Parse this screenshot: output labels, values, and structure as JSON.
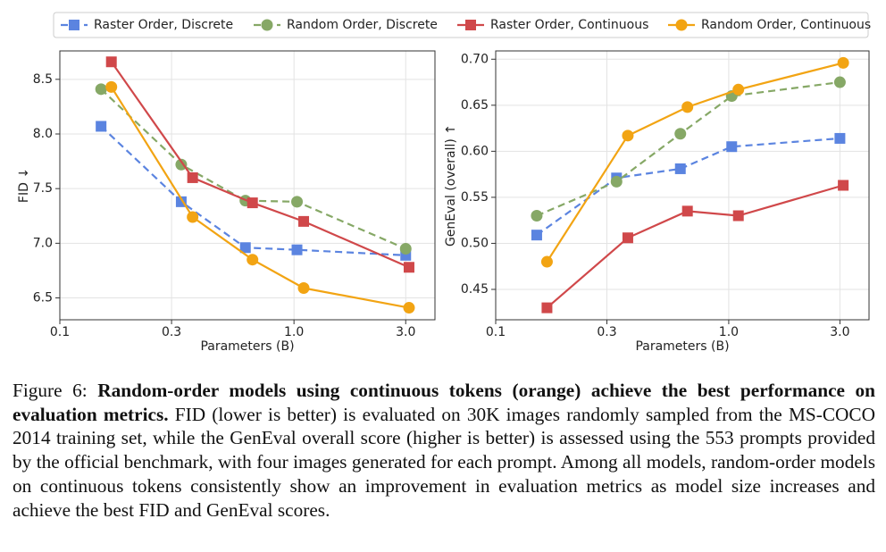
{
  "chart_data": [
    {
      "type": "line",
      "ylabel": "FID ↓",
      "xlabel": "Parameters (B)",
      "xscale": "log",
      "grid": true,
      "xlim": [
        0.1,
        4.0
      ],
      "xticks": [
        0.1,
        0.3,
        {
          "value": 1,
          "label": "1.0"
        },
        {
          "value": 3,
          "label": "3.0"
        }
      ],
      "ylim": [
        6.3,
        8.76
      ],
      "yticks": [
        6.5,
        {
          "value": 7,
          "label": "7.0"
        },
        7.5,
        {
          "value": 8,
          "label": "8.0"
        },
        8.5
      ],
      "series": [
        {
          "name": "Raster Order, Discrete",
          "color": "#5b84e0",
          "marker": "square",
          "dashed": true,
          "x": [
            0.15,
            0.33,
            0.62,
            1.03,
            3.0
          ],
          "values": [
            8.07,
            7.38,
            6.96,
            6.94,
            6.89
          ]
        },
        {
          "name": "Random Order, Discrete",
          "color": "#86a866",
          "marker": "circle",
          "dashed": true,
          "x": [
            0.15,
            0.33,
            0.62,
            1.03,
            3.0
          ],
          "values": [
            8.41,
            7.72,
            7.39,
            7.38,
            6.95
          ]
        },
        {
          "name": "Raster Order, Continuous",
          "color": "#d0484a",
          "marker": "square",
          "dashed": false,
          "x": [
            0.166,
            0.369,
            0.665,
            1.1,
            3.1
          ],
          "values": [
            8.66,
            7.6,
            7.37,
            7.2,
            6.78
          ]
        },
        {
          "name": "Random Order, Continuous",
          "color": "#f2a413",
          "marker": "circle",
          "dashed": false,
          "x": [
            0.166,
            0.369,
            0.665,
            1.1,
            3.1
          ],
          "values": [
            8.43,
            7.24,
            6.85,
            6.59,
            6.41
          ]
        }
      ]
    },
    {
      "type": "line",
      "ylabel": "GenEval (overall) ↑",
      "xlabel": "Parameters (B)",
      "xscale": "log",
      "grid": true,
      "xlim": [
        0.1,
        4.0
      ],
      "xticks": [
        0.1,
        0.3,
        {
          "value": 1,
          "label": "1.0"
        },
        {
          "value": 3,
          "label": "3.0"
        }
      ],
      "ylim": [
        0.417,
        0.709
      ],
      "yticks": [
        0.45,
        {
          "value": 0.5,
          "label": "0.50"
        },
        0.55,
        {
          "value": 0.6,
          "label": "0.60"
        },
        0.65,
        {
          "value": 0.7,
          "label": "0.70"
        }
      ],
      "series": [
        {
          "color": "#5b84e0",
          "marker": "square",
          "dashed": true,
          "x": [
            0.15,
            0.33,
            0.62,
            1.03,
            3.0
          ],
          "values": [
            0.509,
            0.571,
            0.581,
            0.605,
            0.614
          ]
        },
        {
          "color": "#86a866",
          "marker": "circle",
          "dashed": true,
          "x": [
            0.15,
            0.33,
            0.62,
            1.03,
            3.0
          ],
          "values": [
            0.53,
            0.567,
            0.619,
            0.66,
            0.675
          ]
        },
        {
          "color": "#d0484a",
          "marker": "square",
          "dashed": false,
          "x": [
            0.166,
            0.369,
            0.665,
            1.1,
            3.1
          ],
          "values": [
            0.43,
            0.506,
            0.535,
            0.53,
            0.563
          ]
        },
        {
          "color": "#f2a413",
          "marker": "circle",
          "dashed": false,
          "x": [
            0.166,
            0.369,
            0.665,
            1.1,
            3.1
          ],
          "values": [
            0.48,
            0.617,
            0.648,
            0.667,
            0.696
          ]
        }
      ]
    }
  ],
  "caption": {
    "label": "Figure 6:",
    "bold": "Random-order models using continuous tokens (orange) achieve the best performance on evaluation metrics.",
    "text": "FID (lower is better) is evaluated on 30K images randomly sampled from the MS-COCO 2014 training set, while the GenEval overall score (higher is better) is assessed using the 553 prompts provided by the official benchmark, with four images generated for each prompt. Among all models, random-order models on continuous tokens consistently show an improvement in evaluation metrics as model size increases and achieve the best FID and GenEval scores."
  }
}
